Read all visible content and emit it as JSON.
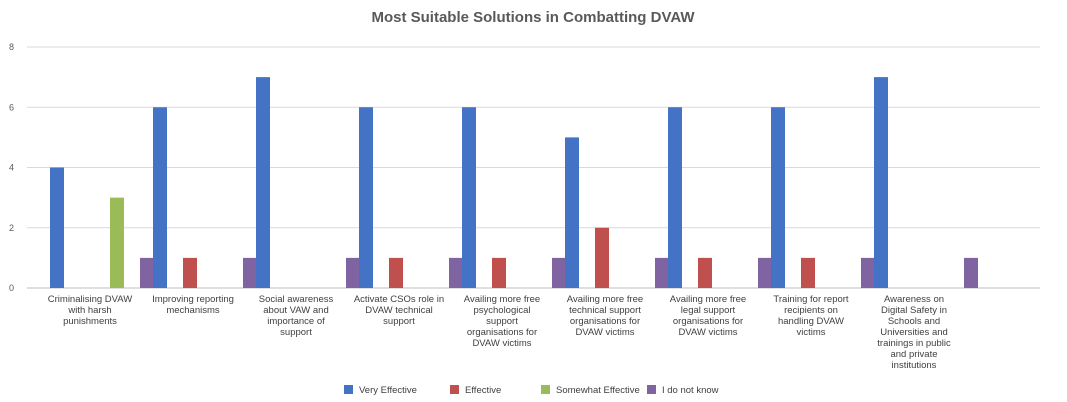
{
  "chart_data": {
    "type": "bar",
    "title": "Most Suitable Solutions in Combatting DVAW",
    "xlabel": "",
    "ylabel": "",
    "ylim": [
      0,
      8
    ],
    "yticks": [
      0,
      2,
      4,
      6,
      8
    ],
    "grid": true,
    "legend_position": "bottom",
    "categories": [
      [
        "Criminalising DVAW",
        "with harsh",
        "punishments"
      ],
      [
        "Improving reporting",
        "mechanisms"
      ],
      [
        "Social awareness",
        "about VAW and",
        "importance of",
        "support"
      ],
      [
        "Activate CSOs role in",
        "DVAW technical",
        "support"
      ],
      [
        "Availing more free",
        "psychological",
        "support",
        "organisations for",
        "DVAW victims"
      ],
      [
        "Availing more free",
        "technical support",
        "organisations for",
        "DVAW victims"
      ],
      [
        "Availing more free",
        "legal support",
        "organisations for",
        "DVAW victims"
      ],
      [
        "Training for report",
        "recipients on",
        "handling DVAW",
        "victims"
      ],
      [
        "Awareness on",
        "Digital Safety in",
        "Schools and",
        "Universities and",
        "trainings in public",
        "and private",
        "institutions"
      ]
    ],
    "series": [
      {
        "name": "Very Effective",
        "color": "#4472c4",
        "values": [
          4,
          6,
          7,
          6,
          6,
          5,
          6,
          6,
          7
        ]
      },
      {
        "name": "Effective",
        "color": "#c0504d",
        "values": [
          0,
          1,
          0,
          1,
          1,
          2,
          1,
          1,
          0
        ]
      },
      {
        "name": "Somewhat Effective",
        "color": "#9bbb59",
        "values": [
          3,
          0,
          0,
          0,
          0,
          0,
          0,
          0,
          0
        ]
      },
      {
        "name": "I do not know",
        "color": "#8064a2",
        "values": [
          1,
          1,
          1,
          1,
          1,
          1,
          1,
          1,
          1
        ]
      }
    ]
  }
}
